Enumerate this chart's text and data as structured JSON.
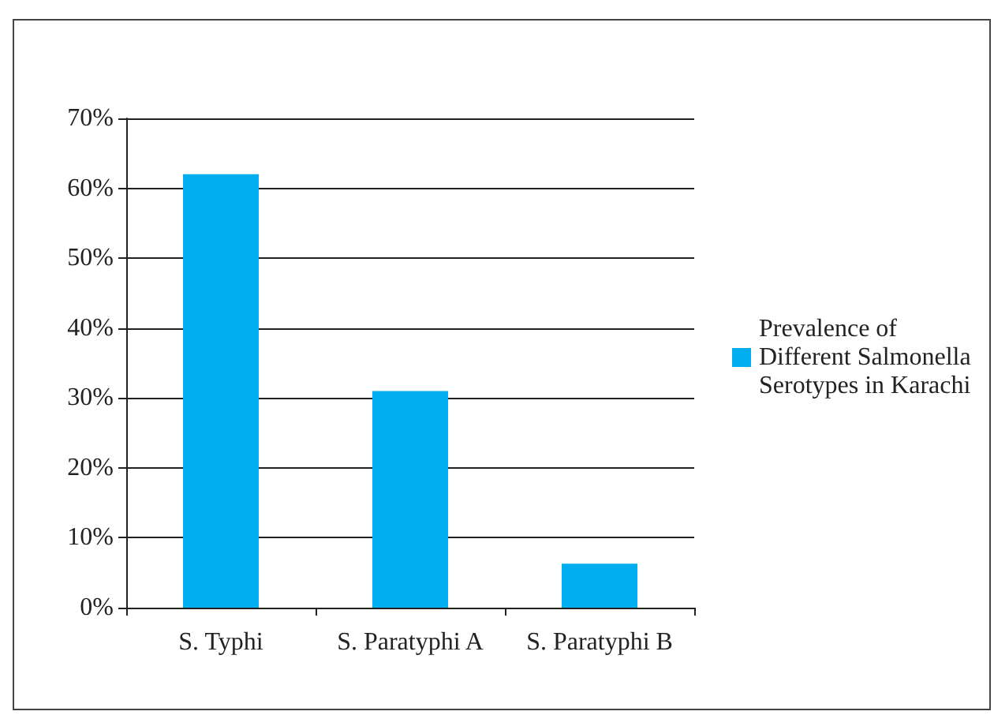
{
  "chart_data": {
    "type": "bar",
    "categories": [
      "S. Typhi",
      "S. Paratyphi A",
      "S. Paratyphi B"
    ],
    "series": [
      {
        "name": "Prevalence of Different Salmonella Serotypes in Karachi",
        "color": "#00aeef",
        "values": [
          62,
          31,
          6.3
        ]
      }
    ],
    "ylim": [
      0,
      70
    ],
    "yticks": [
      {
        "value": 0,
        "label": "0%"
      },
      {
        "value": 10,
        "label": "10%"
      },
      {
        "value": 20,
        "label": "20%"
      },
      {
        "value": 30,
        "label": "30%"
      },
      {
        "value": 40,
        "label": "40%"
      },
      {
        "value": 50,
        "label": "50%"
      },
      {
        "value": 60,
        "label": "60%"
      },
      {
        "value": 70,
        "label": "70%"
      }
    ],
    "grid": "y",
    "legend": "right"
  }
}
